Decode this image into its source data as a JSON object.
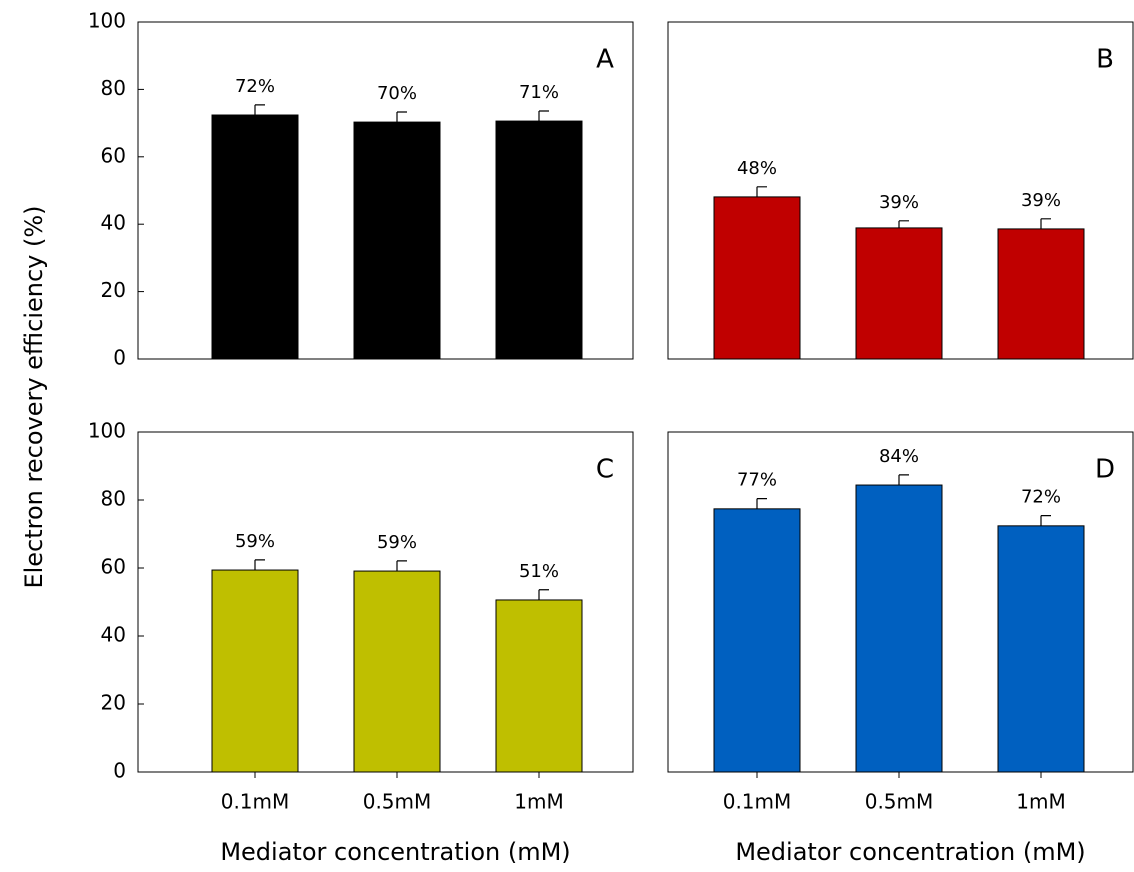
{
  "chart_data": [
    {
      "type": "bar",
      "label": "A",
      "ylabel": "Electron recovery efficiency (%)",
      "categories": [
        null,
        null,
        null
      ],
      "values": [
        72.4,
        70.3,
        70.6
      ],
      "value_labels": [
        "72%",
        "70%",
        "71%"
      ],
      "errors": [
        3,
        3,
        3
      ],
      "color": "#000000",
      "ylim": [
        0,
        100
      ],
      "yticks": [
        0,
        20,
        40,
        60,
        80,
        100
      ]
    },
    {
      "type": "bar",
      "label": "B",
      "categories": [
        null,
        null,
        null
      ],
      "values": [
        48.1,
        38.9,
        38.6
      ],
      "value_labels": [
        "48%",
        "39%",
        "39%"
      ],
      "errors": [
        3,
        2.1,
        3
      ],
      "color": "#c00000",
      "ylim": [
        0,
        100
      ]
    },
    {
      "type": "bar",
      "label": "C",
      "xlabel": "Mediator concentration (mM)",
      "categories": [
        "0.1mM",
        "0.5mM",
        "1mM"
      ],
      "values": [
        59.4,
        59.1,
        50.6
      ],
      "value_labels": [
        "59%",
        "59%",
        "51%"
      ],
      "errors": [
        3,
        3,
        3
      ],
      "color": "#bfbf00",
      "ylim": [
        0,
        100
      ],
      "yticks": [
        0,
        20,
        40,
        60,
        80,
        100
      ]
    },
    {
      "type": "bar",
      "label": "D",
      "xlabel": "Mediator concentration (mM)",
      "categories": [
        "0.1mM",
        "0.5mM",
        "1mM"
      ],
      "values": [
        77.4,
        84.4,
        72.4
      ],
      "value_labels": [
        "77%",
        "84%",
        "72%"
      ],
      "errors": [
        3,
        3,
        3
      ],
      "color": "#0060c0",
      "ylim": [
        0,
        100
      ]
    }
  ]
}
